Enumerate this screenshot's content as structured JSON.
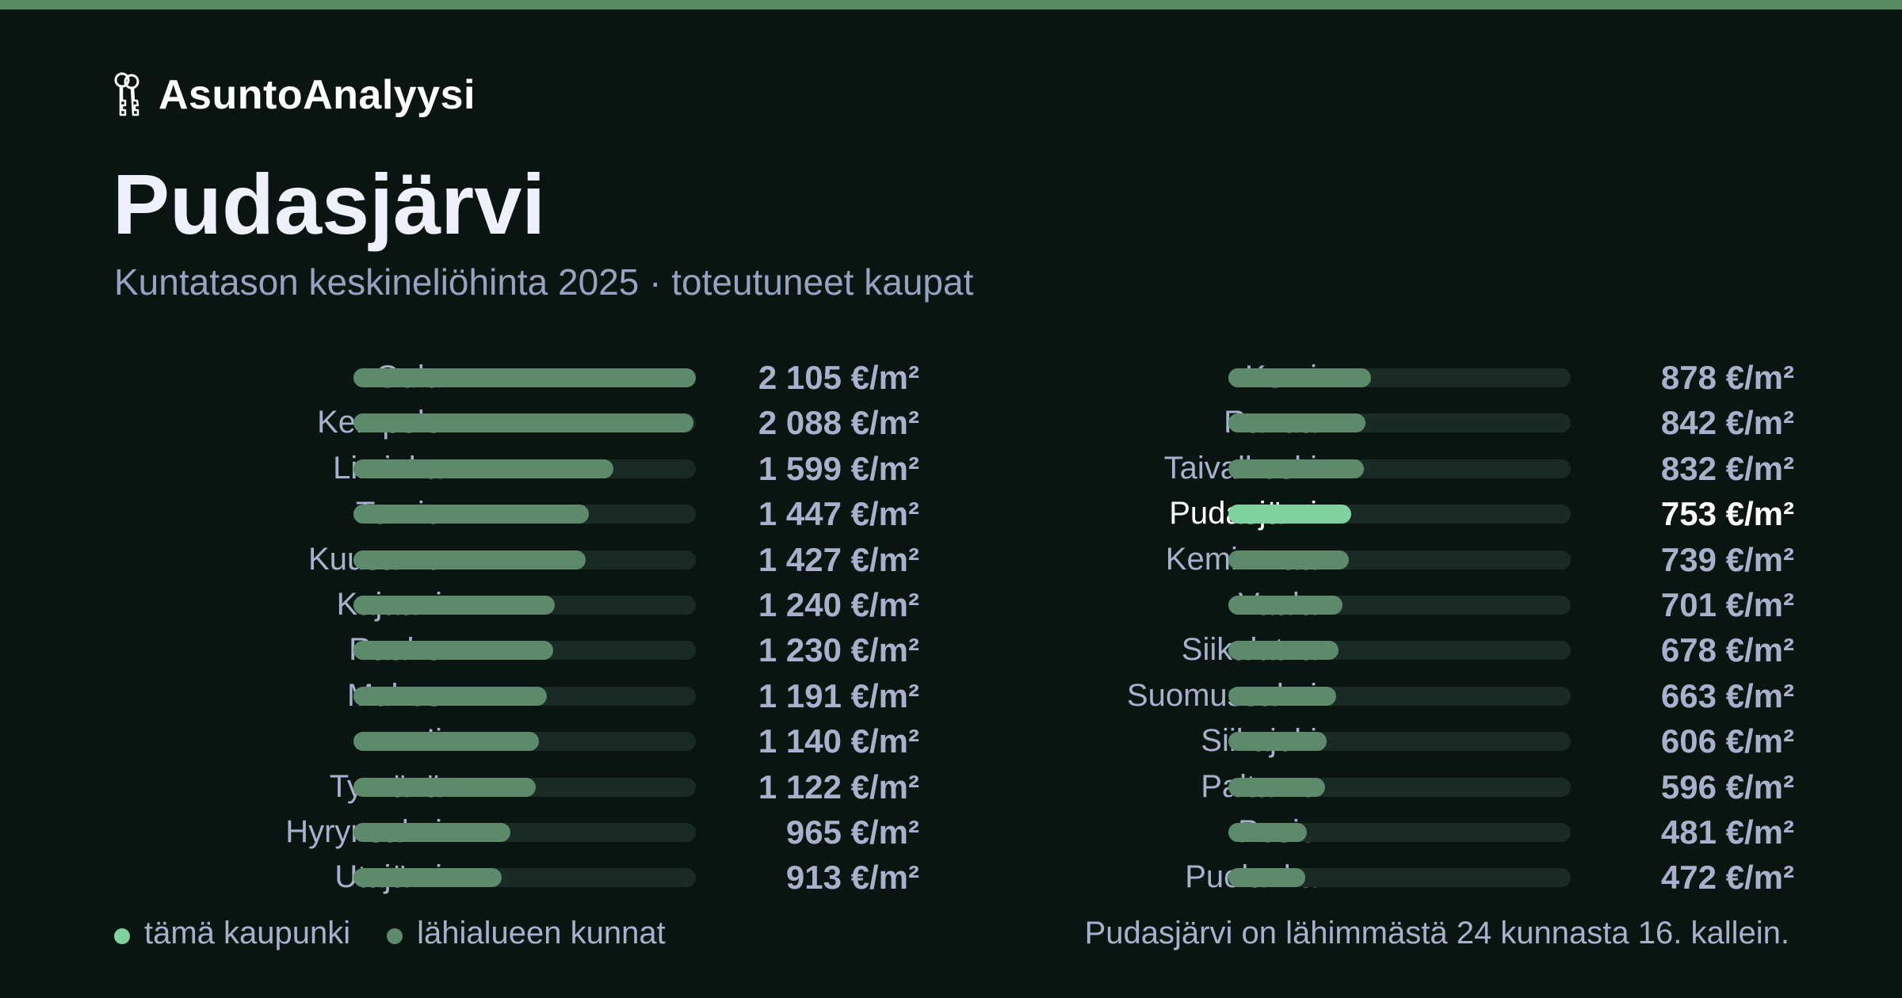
{
  "brand": {
    "name": "AsuntoAnalyysi",
    "icon": "keys-icon"
  },
  "header": {
    "title": "Pudasjärvi",
    "subtitle": "Kuntatason keskineliöhinta 2025 · toteutuneet kaupat"
  },
  "colors": {
    "background": "#0a1512",
    "accent_bar": "#5a8a62",
    "highlight": "#7fd19e",
    "region_bar": "#5e8a6c",
    "track": "#1a2a24"
  },
  "legend": {
    "items": [
      {
        "label": "tämä kaupunki",
        "color": "#7fd19e"
      },
      {
        "label": "lähialueen kunnat",
        "color": "#5e8a6c"
      }
    ]
  },
  "footnote": "Pudasjärvi on lähimmästä 24 kunnasta 16. kallein.",
  "chart_data": {
    "type": "bar",
    "orientation": "horizontal",
    "unit": "€/m²",
    "xlim": [
      0,
      2105
    ],
    "highlight": "Pudasjärvi",
    "rows": [
      {
        "name": "Oulu",
        "value": 2105,
        "label": "2 105 €/m²"
      },
      {
        "name": "Kempele",
        "value": 2088,
        "label": "2 088 €/m²"
      },
      {
        "name": "Liminka",
        "value": 1599,
        "label": "1 599 €/m²"
      },
      {
        "name": "Tornio",
        "value": 1447,
        "label": "1 447 €/m²"
      },
      {
        "name": "Kuusamo",
        "value": 1427,
        "label": "1 427 €/m²"
      },
      {
        "name": "Kajaani",
        "value": 1240,
        "label": "1 240 €/m²"
      },
      {
        "name": "Raahe",
        "value": 1230,
        "label": "1 230 €/m²"
      },
      {
        "name": "Muhos",
        "value": 1191,
        "label": "1 191 €/m²"
      },
      {
        "name": "Ii",
        "value": 1140,
        "label": "1 140 €/m²"
      },
      {
        "name": "Tyrnävä",
        "value": 1122,
        "label": "1 122 €/m²"
      },
      {
        "name": "Hyrynsalmi",
        "value": 965,
        "label": "965 €/m²"
      },
      {
        "name": "Utajärvi",
        "value": 913,
        "label": "913 €/m²"
      },
      {
        "name": "Kemi",
        "value": 878,
        "label": "878 €/m²"
      },
      {
        "name": "Ranua",
        "value": 842,
        "label": "842 €/m²"
      },
      {
        "name": "Taivalkoski",
        "value": 832,
        "label": "832 €/m²"
      },
      {
        "name": "Pudasjärvi",
        "value": 753,
        "label": "753 €/m²"
      },
      {
        "name": "Keminmaa",
        "value": 739,
        "label": "739 €/m²"
      },
      {
        "name": "Vaala",
        "value": 701,
        "label": "701 €/m²"
      },
      {
        "name": "Siikalatva",
        "value": 678,
        "label": "678 €/m²"
      },
      {
        "name": "Suomussalmi",
        "value": 663,
        "label": "663 €/m²"
      },
      {
        "name": "Siikajoki",
        "value": 606,
        "label": "606 €/m²"
      },
      {
        "name": "Paltamo",
        "value": 596,
        "label": "596 €/m²"
      },
      {
        "name": "Posio",
        "value": 481,
        "label": "481 €/m²"
      },
      {
        "name": "Puolanka",
        "value": 472,
        "label": "472 €/m²"
      }
    ]
  }
}
